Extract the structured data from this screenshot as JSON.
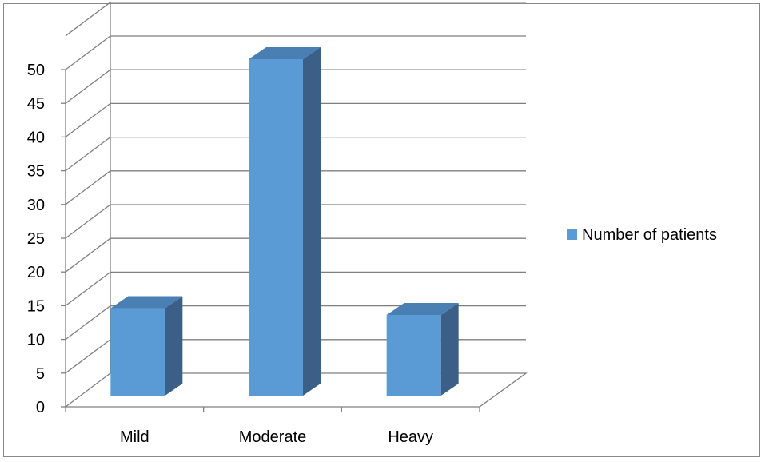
{
  "chart_data": {
    "type": "bar",
    "style": "3d-column",
    "categories": [
      "Mild",
      "Moderate",
      "Heavy"
    ],
    "series": [
      {
        "name": "Number of patients",
        "values": [
          13,
          50,
          12
        ]
      }
    ],
    "yticks": [
      "0",
      "5",
      "10",
      "15",
      "20",
      "25",
      "30",
      "35",
      "40",
      "45",
      "50"
    ],
    "ylim": [
      0,
      50
    ],
    "grid": true,
    "legend": "right",
    "colors": {
      "bar_front": "#5b9bd5",
      "bar_top": "#4a7fb3",
      "bar_side": "#3b5f86",
      "grid": "#7f7f7f"
    }
  }
}
